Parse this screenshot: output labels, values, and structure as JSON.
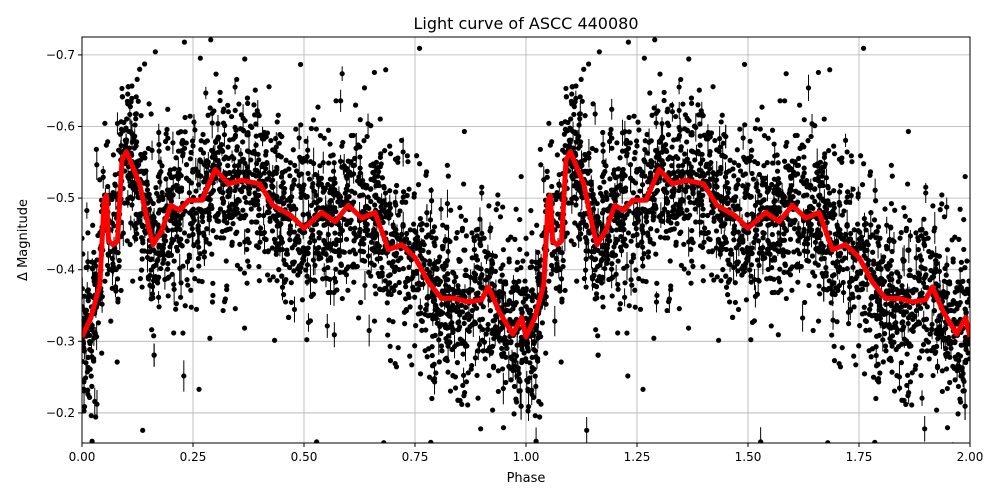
{
  "chart_data": {
    "type": "scatter",
    "title": "Light curve of ASCC 440080",
    "xlabel": "Phase",
    "ylabel": "Δ Magnitude",
    "xlim": [
      0,
      2
    ],
    "ylim": [
      -0.725,
      -0.158
    ],
    "y_inverted": true,
    "grid": true,
    "x_ticks": [
      "0.00",
      "0.25",
      "0.50",
      "0.75",
      "1.00",
      "1.25",
      "1.50",
      "1.75",
      "2.00"
    ],
    "y_ticks": [
      "−0.7",
      "−0.6",
      "−0.5",
      "−0.4",
      "−0.3",
      "−0.2"
    ],
    "y_tick_values": [
      -0.7,
      -0.6,
      -0.5,
      -0.4,
      -0.3,
      -0.2
    ],
    "x_tick_values": [
      0,
      0.25,
      0.5,
      0.75,
      1.0,
      1.25,
      1.5,
      1.75,
      2.0
    ],
    "points_color": "#000000",
    "curve_color": "#ff0000",
    "curve_repeats_per_phase": true,
    "curve": {
      "phase": [
        0,
        0.02,
        0.04,
        0.05,
        0.055,
        0.06,
        0.07,
        0.08,
        0.09,
        0.1,
        0.11,
        0.13,
        0.15,
        0.16,
        0.18,
        0.2,
        0.22,
        0.24,
        0.27,
        0.3,
        0.33,
        0.36,
        0.4,
        0.43,
        0.47,
        0.5,
        0.54,
        0.57,
        0.6,
        0.63,
        0.66,
        0.69,
        0.72,
        0.75,
        0.78,
        0.81,
        0.84,
        0.87,
        0.9,
        0.915,
        0.94,
        0.97,
        0.99,
        1.0
      ],
      "magnitude": [
        -0.306,
        -0.333,
        -0.379,
        -0.497,
        -0.504,
        -0.44,
        -0.435,
        -0.44,
        -0.553,
        -0.565,
        -0.55,
        -0.52,
        -0.46,
        -0.435,
        -0.455,
        -0.49,
        -0.483,
        -0.497,
        -0.497,
        -0.54,
        -0.52,
        -0.525,
        -0.52,
        -0.49,
        -0.476,
        -0.458,
        -0.48,
        -0.467,
        -0.49,
        -0.472,
        -0.48,
        -0.428,
        -0.435,
        -0.417,
        -0.383,
        -0.36,
        -0.36,
        -0.355,
        -0.358,
        -0.376,
        -0.341,
        -0.31,
        -0.333,
        -0.306
      ]
    }
  }
}
